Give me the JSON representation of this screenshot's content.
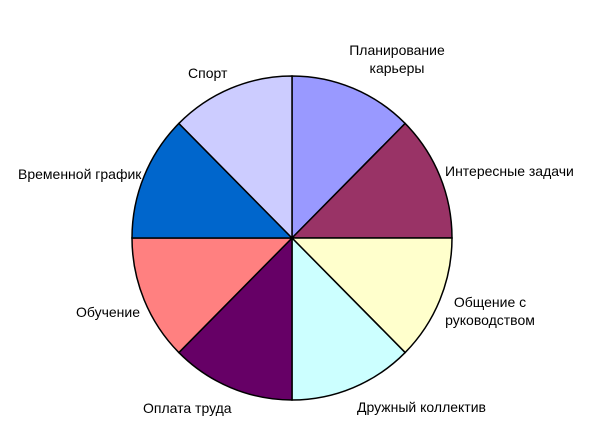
{
  "chart_data": {
    "type": "pie",
    "title": "",
    "legend": "none",
    "background": "#FFFFFF",
    "border_color": "#000000",
    "start_angle_deg": -90,
    "direction": "clockwise",
    "slices": [
      {
        "label": "Планирование карьеры",
        "value": 12.5,
        "color": "#9999FF"
      },
      {
        "label": "Интересные задачи",
        "value": 12.5,
        "color": "#993366"
      },
      {
        "label": "Общение с руководством",
        "value": 12.5,
        "color": "#FFFFCC"
      },
      {
        "label": "Дружный коллектив",
        "value": 12.5,
        "color": "#CCFFFF"
      },
      {
        "label": "Оплата труда",
        "value": 12.5,
        "color": "#660066"
      },
      {
        "label": "Обучение",
        "value": 12.5,
        "color": "#FF8080"
      },
      {
        "label": "Временной график",
        "value": 12.5,
        "color": "#0066CC"
      },
      {
        "label": "Спорт",
        "value": 12.5,
        "color": "#CCCCFF"
      }
    ]
  }
}
